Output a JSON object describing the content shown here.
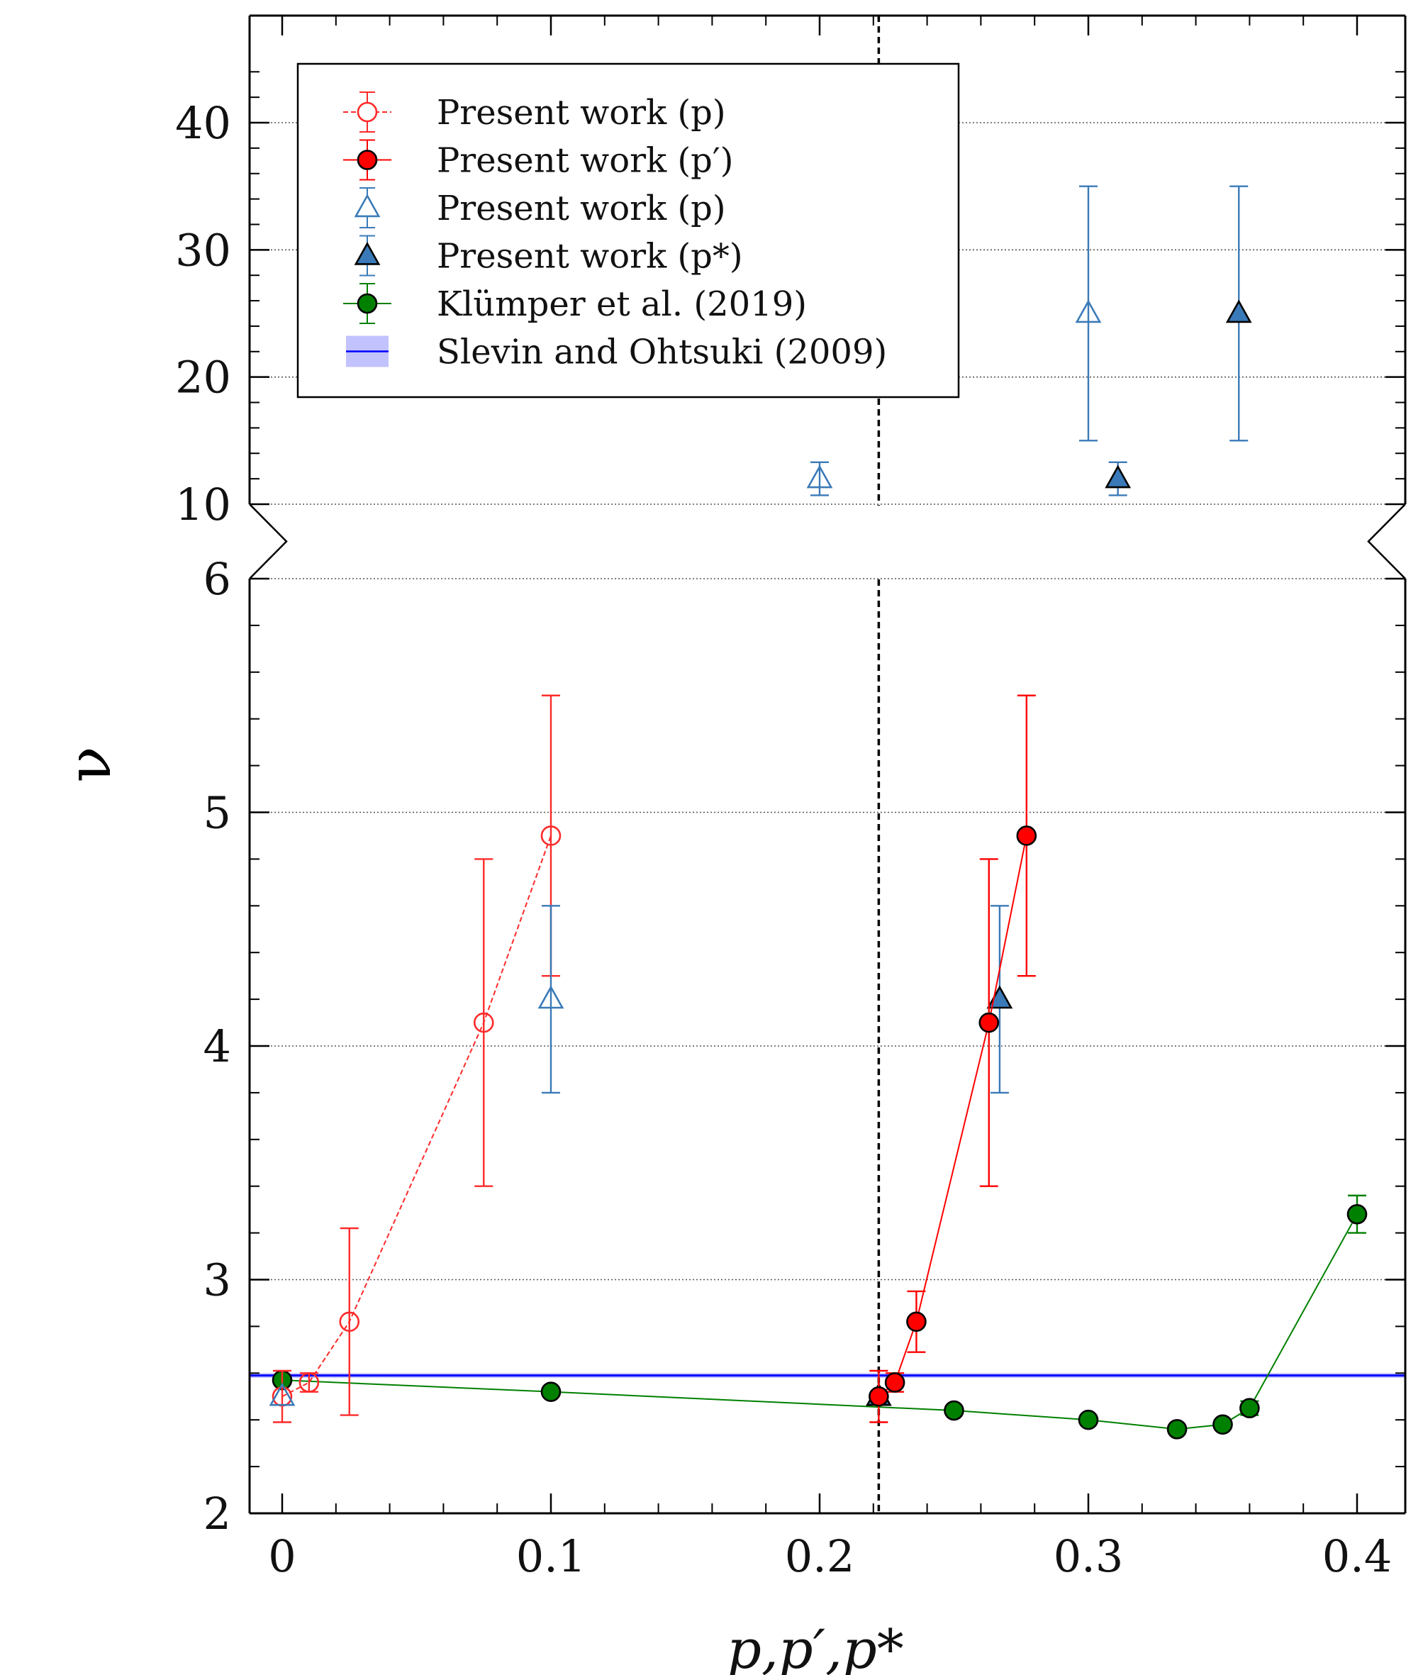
{
  "chart_data": {
    "type": "scatter",
    "xlabel": "p,p′,p*",
    "ylabel": "ν",
    "xlim": [
      -0.012,
      0.42
    ],
    "ylim": [
      2,
      45
    ],
    "broken_y_axis": {
      "lower": [
        2,
        6
      ],
      "upper": [
        10,
        45
      ]
    },
    "x_ticks": [
      "0",
      "0.1",
      "0.2",
      "0.3",
      "0.4"
    ],
    "x_tick_values": [
      0,
      0.1,
      0.2,
      0.3,
      0.4
    ],
    "y_ticks_lower": [
      "2",
      "3",
      "4",
      "5",
      "6"
    ],
    "y_tick_values_lower": [
      2,
      3,
      4,
      5,
      6
    ],
    "y_ticks_upper": [
      "10",
      "20",
      "30",
      "40"
    ],
    "y_tick_values_upper": [
      10,
      20,
      30,
      40
    ],
    "grid": "horizontal dotted",
    "vline_x": 0.222,
    "legend_position": "top-left",
    "legend": [
      {
        "label": "Present work (p)",
        "color": "#ff2a2a",
        "marker": "open-circle",
        "line": "dashed"
      },
      {
        "label": "Present work (p′)",
        "color": "#ff0000",
        "marker": "filled-circle",
        "line": "solid"
      },
      {
        "label": "Present work (p)",
        "color": "#3a7ab8",
        "marker": "open-triangle",
        "line": "none"
      },
      {
        "label": "Present work (p*)",
        "color": "#3a7ab8",
        "marker": "filled-triangle",
        "line": "none"
      },
      {
        "label": "Klümper et al. (2019)",
        "color": "#008000",
        "marker": "filled-circle",
        "line": "solid"
      },
      {
        "label": "Slevin and Ohtsuki (2009)",
        "color": "#0000ff",
        "marker": "band",
        "line": "solid"
      }
    ],
    "series": [
      {
        "name": "Present work (p)",
        "x": [
          0,
          0.01,
          0.025,
          0.075,
          0.1
        ],
        "y": [
          2.5,
          2.56,
          2.82,
          4.1,
          4.9
        ],
        "err": [
          0.11,
          0.04,
          0.4,
          0.7,
          0.6
        ]
      },
      {
        "name": "Present work (p′)",
        "x": [
          0.222,
          0.228,
          0.236,
          0.263,
          0.277
        ],
        "y": [
          2.5,
          2.56,
          2.82,
          4.1,
          4.9
        ],
        "err": [
          0.11,
          0.04,
          0.13,
          0.7,
          0.6
        ]
      },
      {
        "name": "Present work (p)",
        "x": [
          0,
          0.1,
          0.2,
          0.3
        ],
        "y": [
          2.5,
          4.2,
          12,
          25
        ],
        "err": [
          0.0,
          0.4,
          1.3,
          10
        ]
      },
      {
        "name": "Present work (p*)",
        "x": [
          0.222,
          0.267,
          0.311,
          0.356
        ],
        "y": [
          2.5,
          4.2,
          12,
          25
        ],
        "err": [
          0.0,
          0.4,
          1.3,
          10
        ]
      },
      {
        "name": "Klümper et al. (2019)",
        "x": [
          0,
          0.1,
          0.25,
          0.3,
          0.333,
          0.35,
          0.36,
          0.4
        ],
        "y": [
          2.57,
          2.52,
          2.44,
          2.4,
          2.36,
          2.38,
          2.45,
          3.28
        ],
        "err": [
          0.01,
          0.01,
          0.01,
          0.01,
          0.01,
          0.01,
          0.03,
          0.08
        ]
      },
      {
        "name": "Slevin and Ohtsuki (2009)",
        "y": 2.59,
        "err": 0.01
      }
    ]
  }
}
